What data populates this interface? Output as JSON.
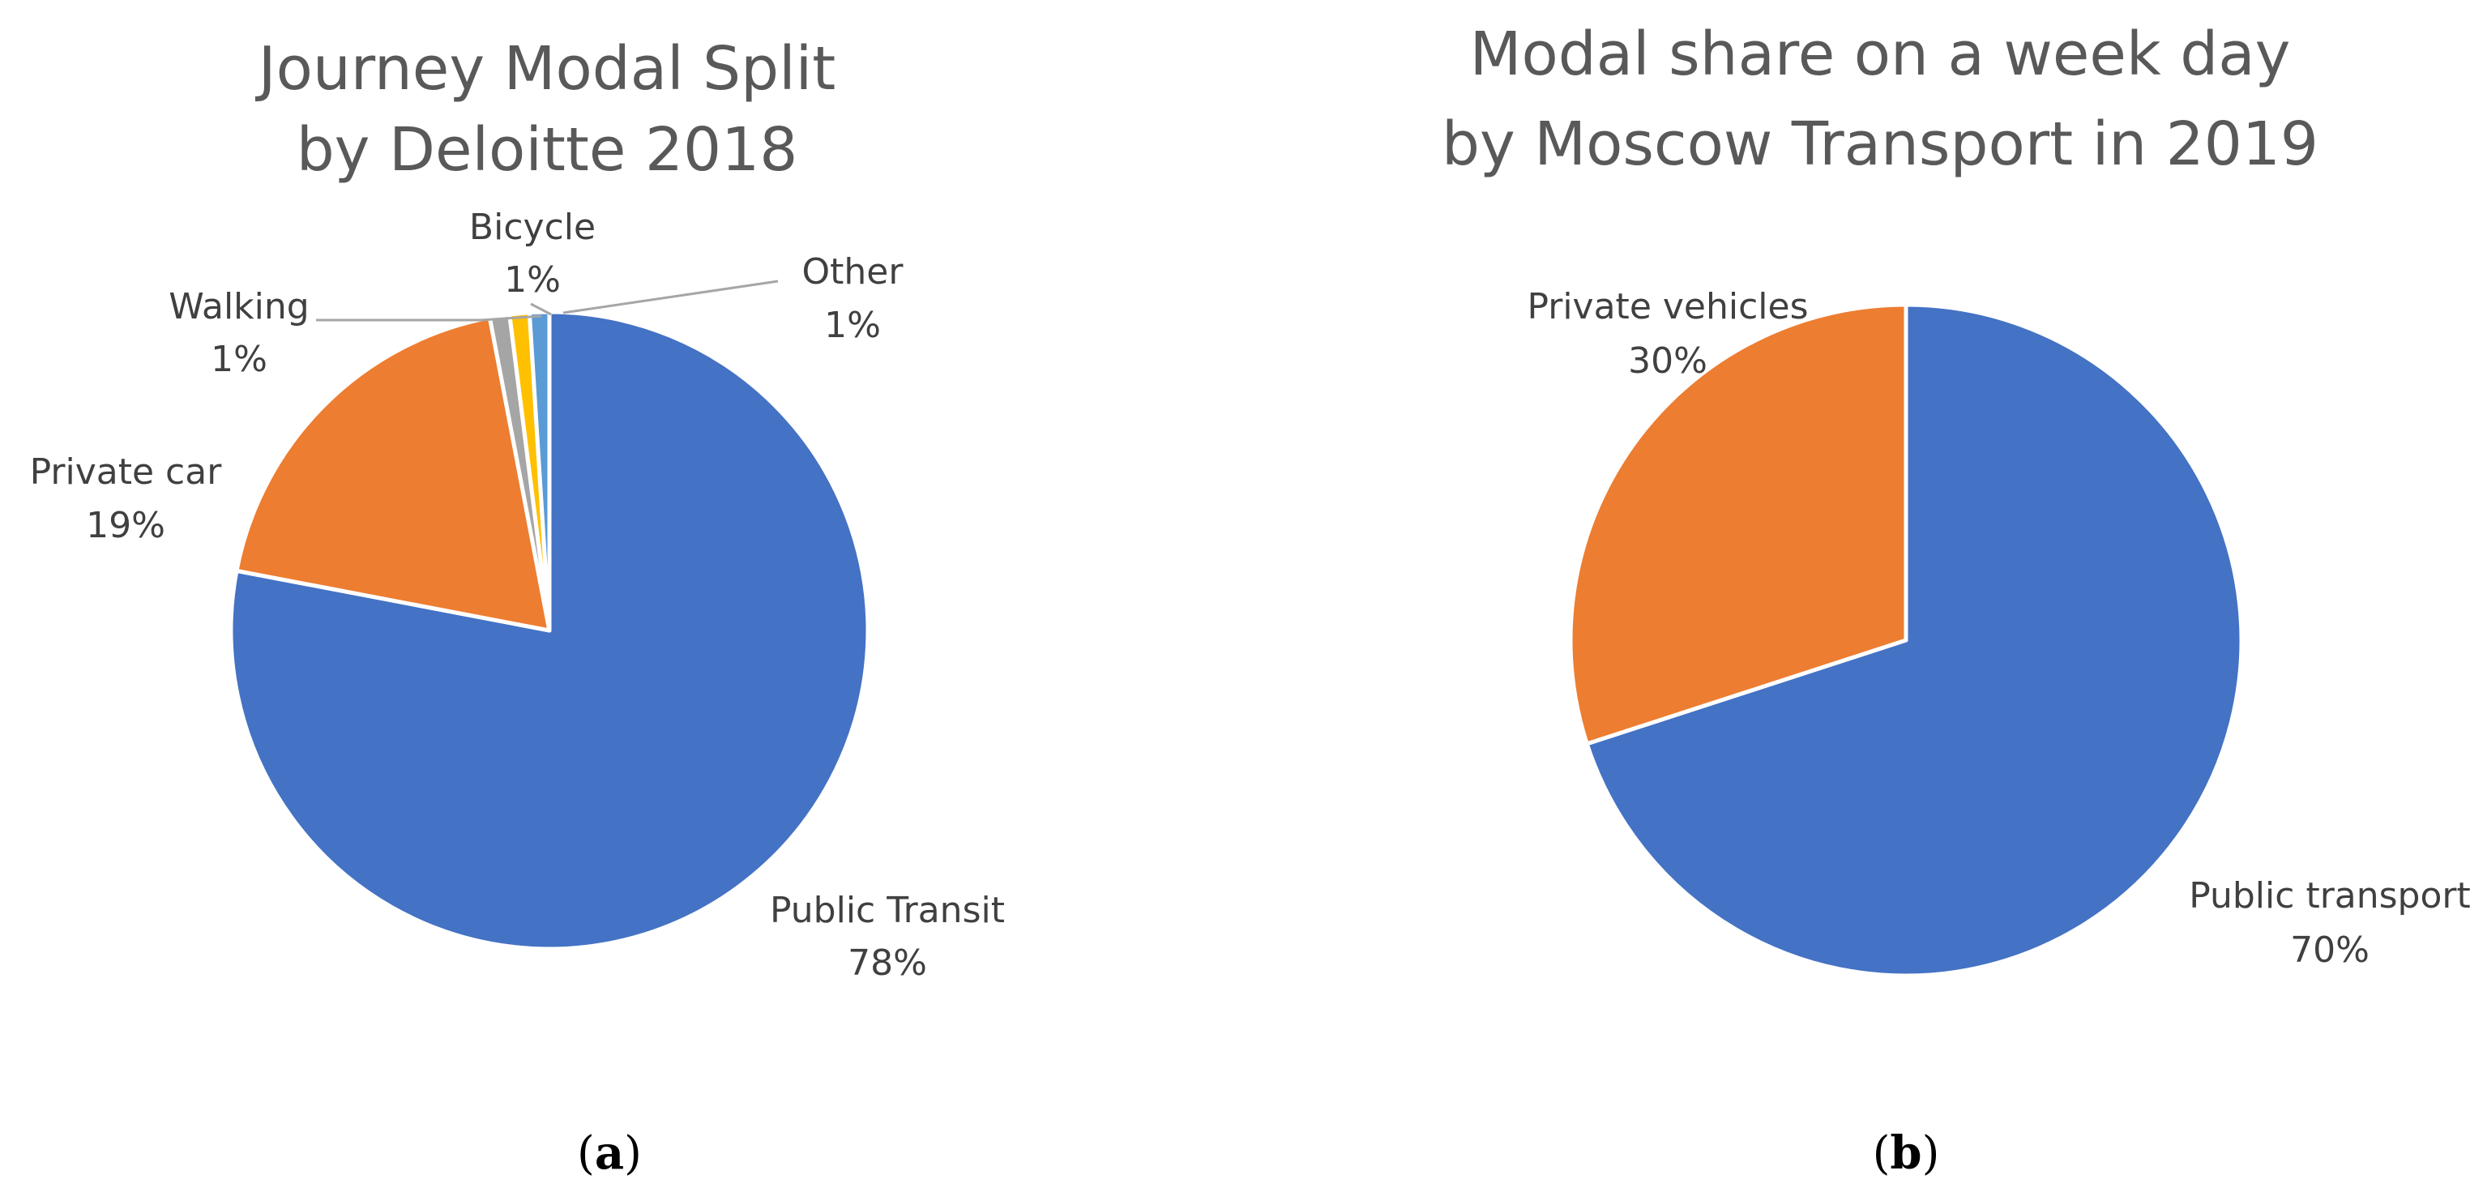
{
  "chart_data": [
    {
      "type": "pie",
      "title_lines": [
        "Journey Modal Split",
        "by Deloitte 2018"
      ],
      "caption_letter": "a",
      "start_angle_deg": 0,
      "direction": "clockwise",
      "slices": [
        {
          "label": "Public Transit",
          "value": 78,
          "value_label": "78%",
          "color": "#4472C4"
        },
        {
          "label": "Private car",
          "value": 19,
          "value_label": "19%",
          "color": "#ED7D31"
        },
        {
          "label": "Walking",
          "value": 1,
          "value_label": "1%",
          "color": "#A5A5A5"
        },
        {
          "label": "Bicycle",
          "value": 1,
          "value_label": "1%",
          "color": "#FFC000"
        },
        {
          "label": "Other",
          "value": 1,
          "value_label": "1%",
          "color": "#5B9BD5"
        }
      ]
    },
    {
      "type": "pie",
      "title_lines": [
        "Modal share on a week day",
        "by Moscow Transport in 2019"
      ],
      "caption_letter": "b",
      "start_angle_deg": 0,
      "direction": "clockwise",
      "slices": [
        {
          "label": "Public transport",
          "value": 70,
          "value_label": "70%",
          "color": "#4472C4"
        },
        {
          "label": "Private vehicles",
          "value": 30,
          "value_label": "30%",
          "color": "#ED7D31"
        }
      ]
    }
  ]
}
